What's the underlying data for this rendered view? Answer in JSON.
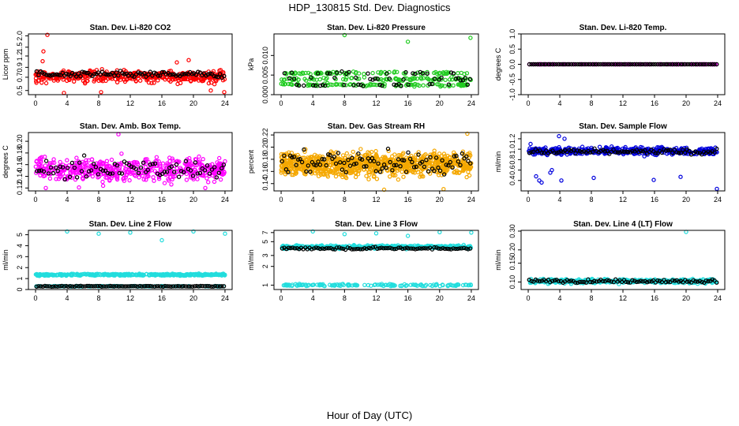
{
  "figure": {
    "title": "HDP_130815  Std. Dev. Diagnostics",
    "xlabel": "Hour of Day (UTC)"
  },
  "chart_data": [
    {
      "type": "scatter",
      "title": "Stan. Dev. Li-820 CO2",
      "ylabel": "Licor ppm",
      "xlim": [
        0,
        24
      ],
      "ylim": [
        0.45,
        2.1
      ],
      "xticks": [
        0,
        4,
        8,
        12,
        16,
        20,
        24
      ],
      "yticks": [
        0.5,
        0.7,
        0.9,
        1.2,
        1.5,
        2.0
      ],
      "ytick_labels": [
        "0.5",
        "0.7",
        "0.9",
        "1.2",
        "1.5",
        "2.0"
      ],
      "log_y": true,
      "colors": {
        "main": "#ff0000",
        "ref": "#000000"
      },
      "series": [
        {
          "role": "main",
          "base": 0.72,
          "spread": 0.09,
          "count": 420,
          "outliers": [
            [
              1.5,
              2.05
            ],
            [
              1.0,
              1.35
            ],
            [
              0.9,
              1.05
            ],
            [
              17.9,
              1.02
            ],
            [
              19.4,
              1.08
            ],
            [
              3.6,
              0.47
            ],
            [
              8.3,
              0.48
            ],
            [
              22.2,
              0.5
            ],
            [
              23.9,
              0.48
            ]
          ]
        },
        {
          "role": "ref",
          "base": 0.75,
          "spread": 0.05,
          "count": 95,
          "outliers": []
        }
      ]
    },
    {
      "type": "scatter",
      "title": "Stan. Dev. Li-820 Pressure",
      "ylabel": "kPa",
      "xlim": [
        0,
        24
      ],
      "ylim": [
        0,
        0.0155
      ],
      "xticks": [
        0,
        4,
        8,
        12,
        16,
        20,
        24
      ],
      "yticks": [
        0,
        0.005,
        0.01
      ],
      "ytick_labels": [
        "0.000",
        "0.005",
        "0.010"
      ],
      "log_y": false,
      "colors": {
        "main": "#22cc22",
        "ref": "#000000"
      },
      "series": [
        {
          "role": "main",
          "levels": [
            0.0,
            0.0025,
            0.004,
            0.0055
          ],
          "count": 360,
          "outliers": [
            [
              8.0,
              0.0152
            ],
            [
              16.0,
              0.0135
            ],
            [
              23.9,
              0.0145
            ]
          ]
        },
        {
          "role": "ref",
          "levels": [
            0.0,
            0.0025,
            0.004,
            0.0055
          ],
          "count": 80,
          "outliers": []
        }
      ]
    },
    {
      "type": "scatter",
      "title": "Stan. Dev. Li-820 Temp.",
      "ylabel": "degrees C",
      "xlim": [
        0,
        24
      ],
      "ylim": [
        -1,
        1
      ],
      "xticks": [
        0,
        4,
        8,
        12,
        16,
        20,
        24
      ],
      "yticks": [
        -1,
        -0.5,
        0,
        0.5,
        1
      ],
      "ytick_labels": [
        "-1.0",
        "-0.5",
        "0.0",
        "0.5",
        "1.0"
      ],
      "log_y": false,
      "colors": {
        "main": "#ff00ff",
        "ref": "#000000"
      },
      "series": [
        {
          "role": "main",
          "base": 0.0,
          "spread": 0.0,
          "count": 140,
          "outliers": []
        },
        {
          "role": "ref",
          "base": 0.0,
          "spread": 0.0,
          "count": 90,
          "outliers": []
        }
      ]
    },
    {
      "type": "scatter",
      "title": "Stan. Dev. Amb. Box Temp.",
      "ylabel": "degrees C",
      "xlim": [
        0,
        24
      ],
      "ylim": [
        0.115,
        0.215
      ],
      "xticks": [
        0,
        4,
        8,
        12,
        16,
        20,
        24
      ],
      "yticks": [
        0.12,
        0.14,
        0.16,
        0.18,
        0.2
      ],
      "ytick_labels": [
        "0.12",
        "0.14",
        "0.16",
        "0.18",
        "0.20"
      ],
      "log_y": false,
      "colors": {
        "main": "#ff00ff",
        "ref": "#000000"
      },
      "series": [
        {
          "role": "main",
          "base": 0.152,
          "spread": 0.017,
          "count": 520,
          "outliers": [
            [
              10.5,
              0.212
            ],
            [
              1.3,
              0.12
            ],
            [
              5.5,
              0.121
            ],
            [
              21.5,
              0.12
            ]
          ]
        },
        {
          "role": "ref",
          "base": 0.152,
          "spread": 0.015,
          "count": 80,
          "outliers": []
        }
      ]
    },
    {
      "type": "scatter",
      "title": "Stan. Dev. Gas Stream RH",
      "ylabel": "percent",
      "xlim": [
        0,
        24
      ],
      "ylim": [
        0.128,
        0.224
      ],
      "xticks": [
        0,
        4,
        8,
        12,
        16,
        20,
        24
      ],
      "yticks": [
        0.14,
        0.16,
        0.18,
        0.2,
        0.22
      ],
      "ytick_labels": [
        "0.14",
        "0.16",
        "0.18",
        "0.20",
        "0.22"
      ],
      "log_y": false,
      "colors": {
        "main": "#f5a800",
        "ref": "#000000"
      },
      "series": [
        {
          "role": "main",
          "base": 0.172,
          "spread": 0.016,
          "count": 950,
          "outliers": [
            [
              23.5,
              0.222
            ],
            [
              20.5,
              0.131
            ],
            [
              13.0,
              0.13
            ]
          ]
        },
        {
          "role": "ref",
          "base": 0.175,
          "spread": 0.016,
          "count": 95,
          "outliers": []
        }
      ]
    },
    {
      "type": "scatter",
      "title": "Stan. Dev. Sample Flow",
      "ylabel": "ml/min",
      "xlim": [
        0,
        24
      ],
      "ylim": [
        0.2,
        1.32
      ],
      "xticks": [
        0,
        4,
        8,
        12,
        16,
        20,
        24
      ],
      "yticks": [
        0.4,
        0.6,
        0.8,
        1.0,
        1.2
      ],
      "ytick_labels": [
        "0.4",
        "0.6",
        "0.8",
        "1.0",
        "1.2"
      ],
      "log_y": false,
      "colors": {
        "main": "#0000dd",
        "ref": "#000000"
      },
      "series": [
        {
          "role": "main",
          "base": 0.97,
          "spread": 0.06,
          "count": 430,
          "outliers": [
            [
              1.0,
              0.48
            ],
            [
              1.4,
              0.4
            ],
            [
              1.7,
              0.36
            ],
            [
              2.8,
              0.55
            ],
            [
              3.0,
              0.6
            ],
            [
              4.2,
              0.4
            ],
            [
              8.3,
              0.45
            ],
            [
              15.9,
              0.41
            ],
            [
              19.3,
              0.47
            ],
            [
              23.9,
              0.24
            ],
            [
              3.9,
              1.25
            ],
            [
              4.6,
              1.2
            ],
            [
              0.3,
              1.1
            ]
          ]
        },
        {
          "role": "ref",
          "base": 0.95,
          "spread": 0.04,
          "count": 90,
          "outliers": []
        }
      ]
    },
    {
      "type": "scatter",
      "title": "Stan. Dev. Line 2 Flow",
      "ylabel": "ml/min",
      "xlim": [
        0,
        24
      ],
      "ylim": [
        0,
        5.4
      ],
      "xticks": [
        0,
        4,
        8,
        12,
        16,
        20,
        24
      ],
      "yticks": [
        0,
        1,
        2,
        3,
        4,
        5
      ],
      "ytick_labels": [
        "0",
        "1",
        "2",
        "3",
        "4",
        "5"
      ],
      "log_y": false,
      "colors": {
        "main": "#22dddd",
        "ref": "#000000"
      },
      "series": [
        {
          "role": "main",
          "base": 1.35,
          "spread": 0.07,
          "count": 420,
          "outliers": [
            [
              4.0,
              5.3
            ],
            [
              8.0,
              5.1
            ],
            [
              12.0,
              5.2
            ],
            [
              16.0,
              4.5
            ],
            [
              20.0,
              5.3
            ],
            [
              24.0,
              5.1
            ]
          ]
        },
        {
          "role": "main_low",
          "base": 0.3,
          "spread": 0.02,
          "count": 120,
          "outliers": []
        },
        {
          "role": "ref",
          "base": 0.3,
          "spread": 0.03,
          "count": 90,
          "outliers": []
        }
      ]
    },
    {
      "type": "scatter",
      "title": "Stan. Dev. Line 3 Flow",
      "ylabel": "ml/min",
      "xlim": [
        0,
        24
      ],
      "ylim": [
        0.85,
        7.6
      ],
      "xticks": [
        0,
        4,
        8,
        12,
        16,
        20,
        24
      ],
      "yticks": [
        1,
        2,
        3,
        5,
        7
      ],
      "ytick_labels": [
        "1",
        "2",
        "3",
        "5",
        "7"
      ],
      "log_y": true,
      "colors": {
        "main": "#22dddd",
        "ref": "#000000"
      },
      "series": [
        {
          "role": "main",
          "base": 4.1,
          "spread": 0.2,
          "count": 400,
          "outliers": [
            [
              4.0,
              7.3
            ],
            [
              8.0,
              6.6
            ],
            [
              12.0,
              6.8
            ],
            [
              16.0,
              6.2
            ],
            [
              20.0,
              7.1
            ],
            [
              24.0,
              7.0
            ]
          ]
        },
        {
          "role": "main_low",
          "base": 1.0,
          "spread": 0.03,
          "count": 140,
          "outliers": []
        },
        {
          "role": "ref",
          "base": 3.9,
          "spread": 0.15,
          "count": 90,
          "outliers": []
        }
      ]
    },
    {
      "type": "scatter",
      "title": "Stan. Dev. Line 4 (LT) Flow",
      "ylabel": "ml/min",
      "xlim": [
        0,
        24
      ],
      "ylim": [
        0.085,
        0.305
      ],
      "xticks": [
        0,
        4,
        8,
        12,
        16,
        20,
        24
      ],
      "yticks": [
        0.1,
        0.15,
        0.2,
        0.3
      ],
      "ytick_labels": [
        "0.10",
        "0.15",
        "0.20",
        "0.30"
      ],
      "log_y": true,
      "colors": {
        "main": "#22dddd",
        "ref": "#000000"
      },
      "series": [
        {
          "role": "main",
          "base": 0.102,
          "spread": 0.004,
          "count": 420,
          "outliers": [
            [
              4.1,
              0.3
            ],
            [
              12.0,
              0.305
            ],
            [
              20.0,
              0.295
            ]
          ]
        },
        {
          "role": "ref",
          "base": 0.102,
          "spread": 0.003,
          "count": 90,
          "outliers": []
        }
      ]
    }
  ]
}
